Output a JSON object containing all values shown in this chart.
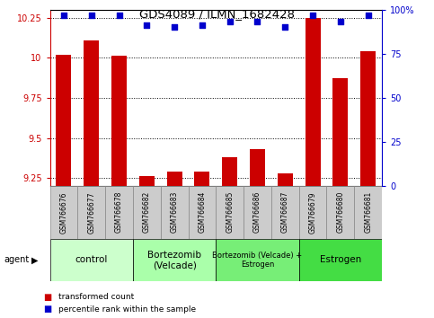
{
  "title": "GDS4089 / ILMN_1682428",
  "samples": [
    "GSM766676",
    "GSM766677",
    "GSM766678",
    "GSM766682",
    "GSM766683",
    "GSM766684",
    "GSM766685",
    "GSM766686",
    "GSM766687",
    "GSM766679",
    "GSM766680",
    "GSM766681"
  ],
  "transformed_counts": [
    10.02,
    10.11,
    10.01,
    9.26,
    9.29,
    9.29,
    9.38,
    9.43,
    9.28,
    10.25,
    9.87,
    10.04
  ],
  "percentile_ranks": [
    97,
    97,
    97,
    91,
    90,
    91,
    93,
    93,
    90,
    97,
    93,
    97
  ],
  "ylim_left": [
    9.2,
    10.3
  ],
  "ylim_right": [
    0,
    100
  ],
  "yticks_left": [
    9.25,
    9.5,
    9.75,
    10.0,
    10.25
  ],
  "yticks_right": [
    0,
    25,
    50,
    75,
    100
  ],
  "bar_color": "#cc0000",
  "dot_color": "#0000cc",
  "groups": [
    {
      "label": "control",
      "start": 0,
      "end": 3,
      "color": "#ccffcc"
    },
    {
      "label": "Bortezomib\n(Velcade)",
      "start": 3,
      "end": 6,
      "color": "#aaffaa"
    },
    {
      "label": "Bortezomib (Velcade) +\nEstrogen",
      "start": 6,
      "end": 9,
      "color": "#77ee77"
    },
    {
      "label": "Estrogen",
      "start": 9,
      "end": 12,
      "color": "#44dd44"
    }
  ],
  "legend_bar_label": "transformed count",
  "legend_dot_label": "percentile rank within the sample",
  "agent_label": "agent",
  "background_color": "#ffffff",
  "plot_bg_color": "#ffffff",
  "sample_box_color": "#cccccc",
  "sample_box_edge": "#888888"
}
